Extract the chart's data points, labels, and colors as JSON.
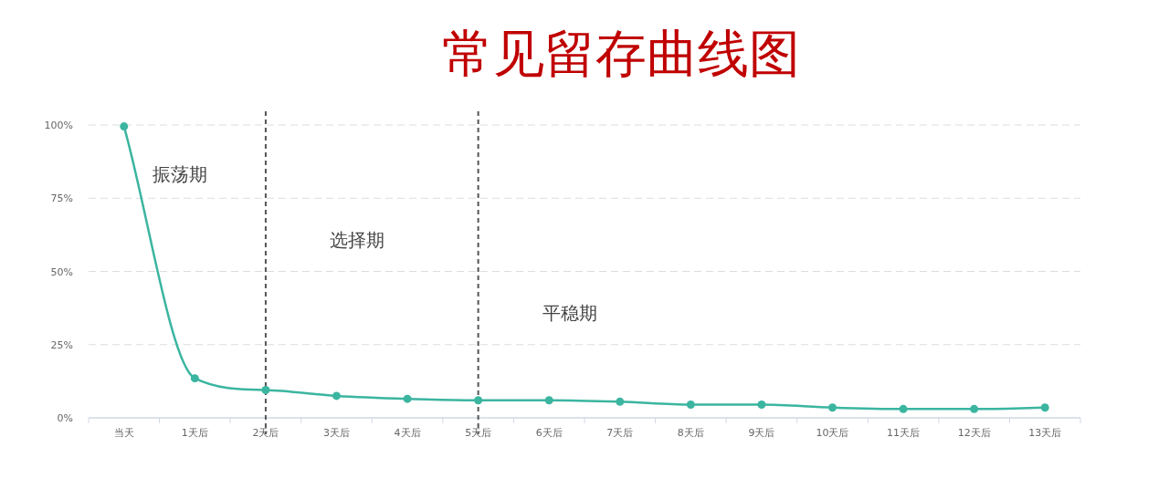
{
  "chart_data": {
    "type": "line",
    "title": "常见留存曲线图",
    "categories": [
      "当天",
      "1天后",
      "2天后",
      "3天后",
      "4天后",
      "5天后",
      "6天后",
      "7天后",
      "8天后",
      "9天后",
      "10天后",
      "11天后",
      "12天后",
      "13天后"
    ],
    "series": [
      {
        "color": "#3bb5a0",
        "values": [
          99.5,
          13.5,
          9.5,
          7.5,
          6.5,
          6,
          6,
          5.5,
          4.5,
          4.5,
          3.5,
          3,
          3,
          3.5
        ]
      }
    ],
    "ylim": [
      0,
      100
    ],
    "yticks": [
      {
        "value": 0,
        "label": "0%"
      },
      {
        "value": 25,
        "label": "25%"
      },
      {
        "value": 50,
        "label": "50%"
      },
      {
        "value": 75,
        "label": "75%"
      },
      {
        "value": 100,
        "label": "100%"
      }
    ],
    "grid": "y",
    "marker": "circle",
    "line_style": "solid",
    "ref_lines": [
      {
        "axis": "x",
        "value": "2天后",
        "color": "#555555",
        "line_style": "dashed"
      },
      {
        "axis": "x",
        "value": "5天后",
        "color": "#555555",
        "line_style": "dashed"
      }
    ],
    "annotations": [
      "振荡期",
      "选择期",
      "平稳期"
    ]
  }
}
